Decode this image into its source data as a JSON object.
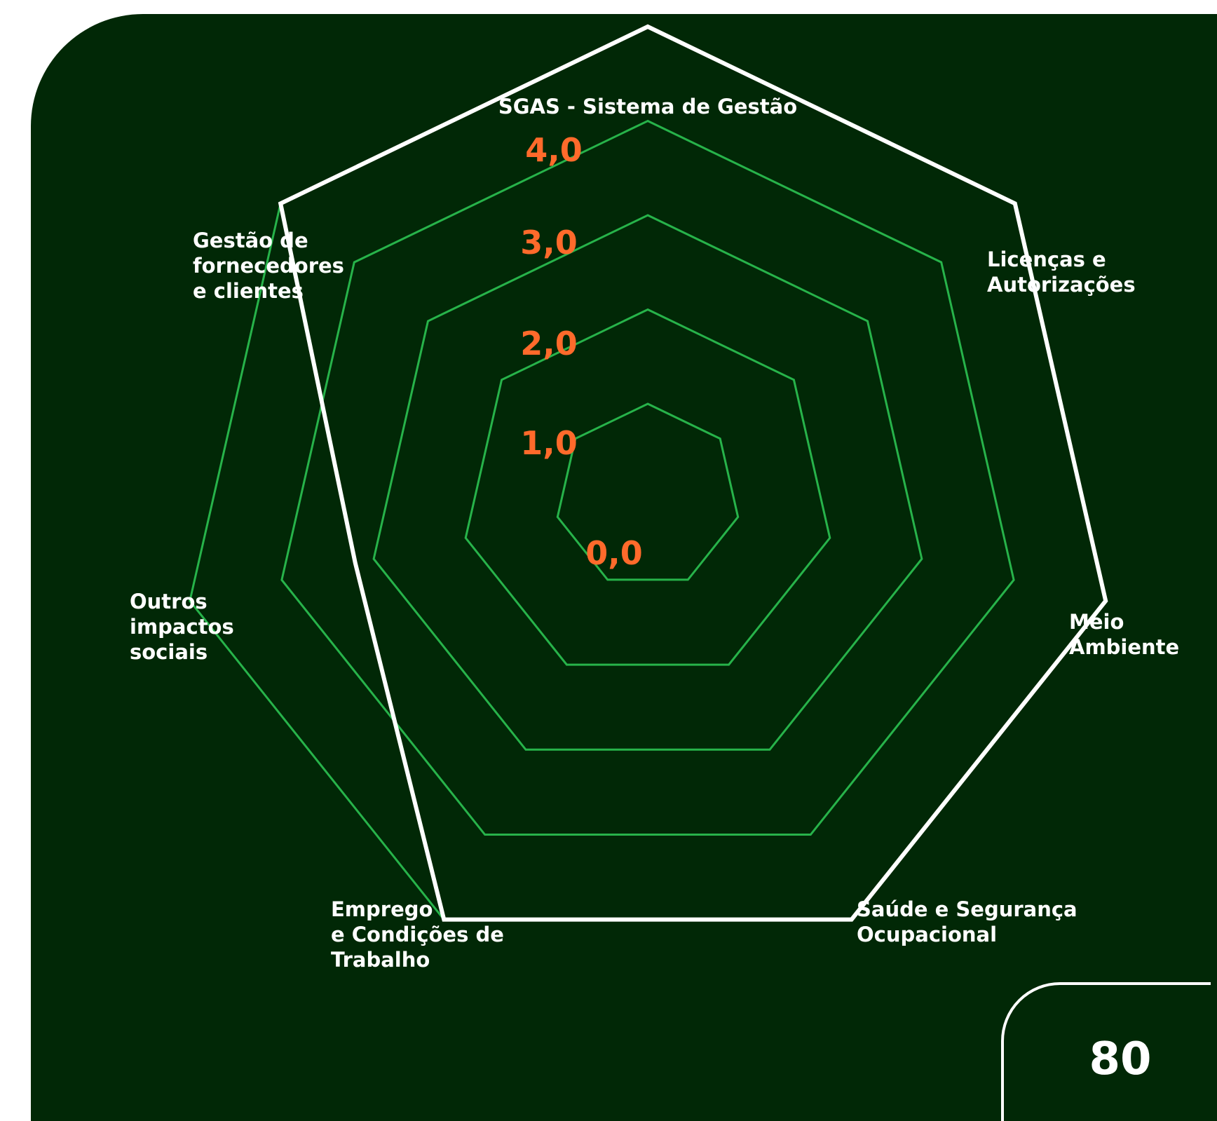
{
  "chart_data": {
    "type": "radar",
    "axes": [
      [
        "SGAS - Sistema de Gestão"
      ],
      [
        "Licenças e",
        "Autorizações"
      ],
      [
        "Meio",
        "Ambiente"
      ],
      [
        "Saúde e Segurança",
        "Ocupacional"
      ],
      [
        "Emprego",
        "e Condições de",
        "Trabalho"
      ],
      [
        "Outros",
        "impactos",
        "sociais"
      ],
      [
        "Gestão de",
        "fornecedores",
        "e clientes"
      ]
    ],
    "ticks": [
      "0,0",
      "1,0",
      "2,0",
      "3,0",
      "4,0"
    ],
    "tick_values": [
      0,
      1,
      2,
      3,
      4
    ],
    "rlim": [
      0,
      4
    ],
    "series": [
      {
        "values": [
          4.0,
          4.0,
          4.0,
          4.0,
          4.0,
          2.2,
          4.0
        ]
      }
    ],
    "colors": {
      "background": "#012806",
      "grid": "#27b34a",
      "series": "#ffffff",
      "tick_labels": "#ff6a2b",
      "axis_labels": "#ffffff"
    }
  },
  "page": {
    "number": "80"
  }
}
